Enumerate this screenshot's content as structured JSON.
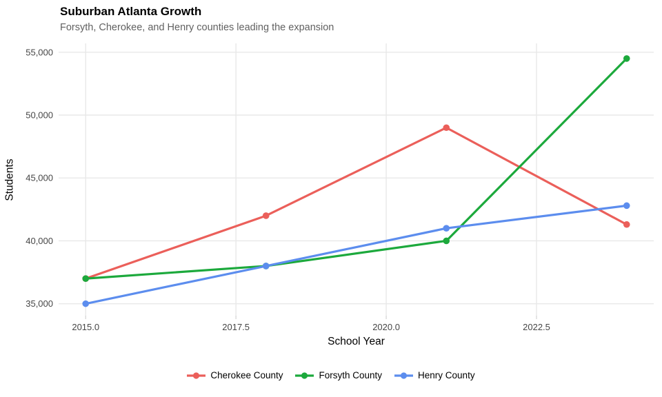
{
  "chart_data": {
    "type": "line",
    "title": "Suburban Atlanta Growth",
    "subtitle": "Forsyth, Cherokee, and Henry counties leading the expansion",
    "xlabel": "School Year",
    "ylabel": "Students",
    "x": [
      2015,
      2018,
      2021,
      2024
    ],
    "series": [
      {
        "name": "Cherokee County",
        "color": "#EB5F5A",
        "values": [
          37000,
          42000,
          49000,
          41300
        ]
      },
      {
        "name": "Forsyth County",
        "color": "#1CA93C",
        "values": [
          37000,
          38000,
          40000,
          54500
        ]
      },
      {
        "name": "Henry County",
        "color": "#5C8DEE",
        "values": [
          35000,
          38000,
          41000,
          42800
        ]
      }
    ],
    "x_ticks": [
      2015.0,
      2017.5,
      2020.0,
      2022.5
    ],
    "x_tick_labels": [
      "2015.0",
      "2017.5",
      "2020.0",
      "2022.5"
    ],
    "y_ticks": [
      35000,
      40000,
      45000,
      50000,
      55000
    ],
    "y_tick_labels": [
      "35,000",
      "40,000",
      "45,000",
      "50,000",
      "55,000"
    ],
    "xlim": [
      2014.55,
      2024.45
    ],
    "ylim": [
      34050,
      55700
    ],
    "grid": "major-only",
    "legend_position": "bottom-center",
    "colors": {
      "background": "#FFFFFF",
      "gridline": "#E8E8E8",
      "tick_mark": "#D9D9D9",
      "tick_label": "#454545",
      "title": "#000000",
      "subtitle": "#616161"
    }
  }
}
